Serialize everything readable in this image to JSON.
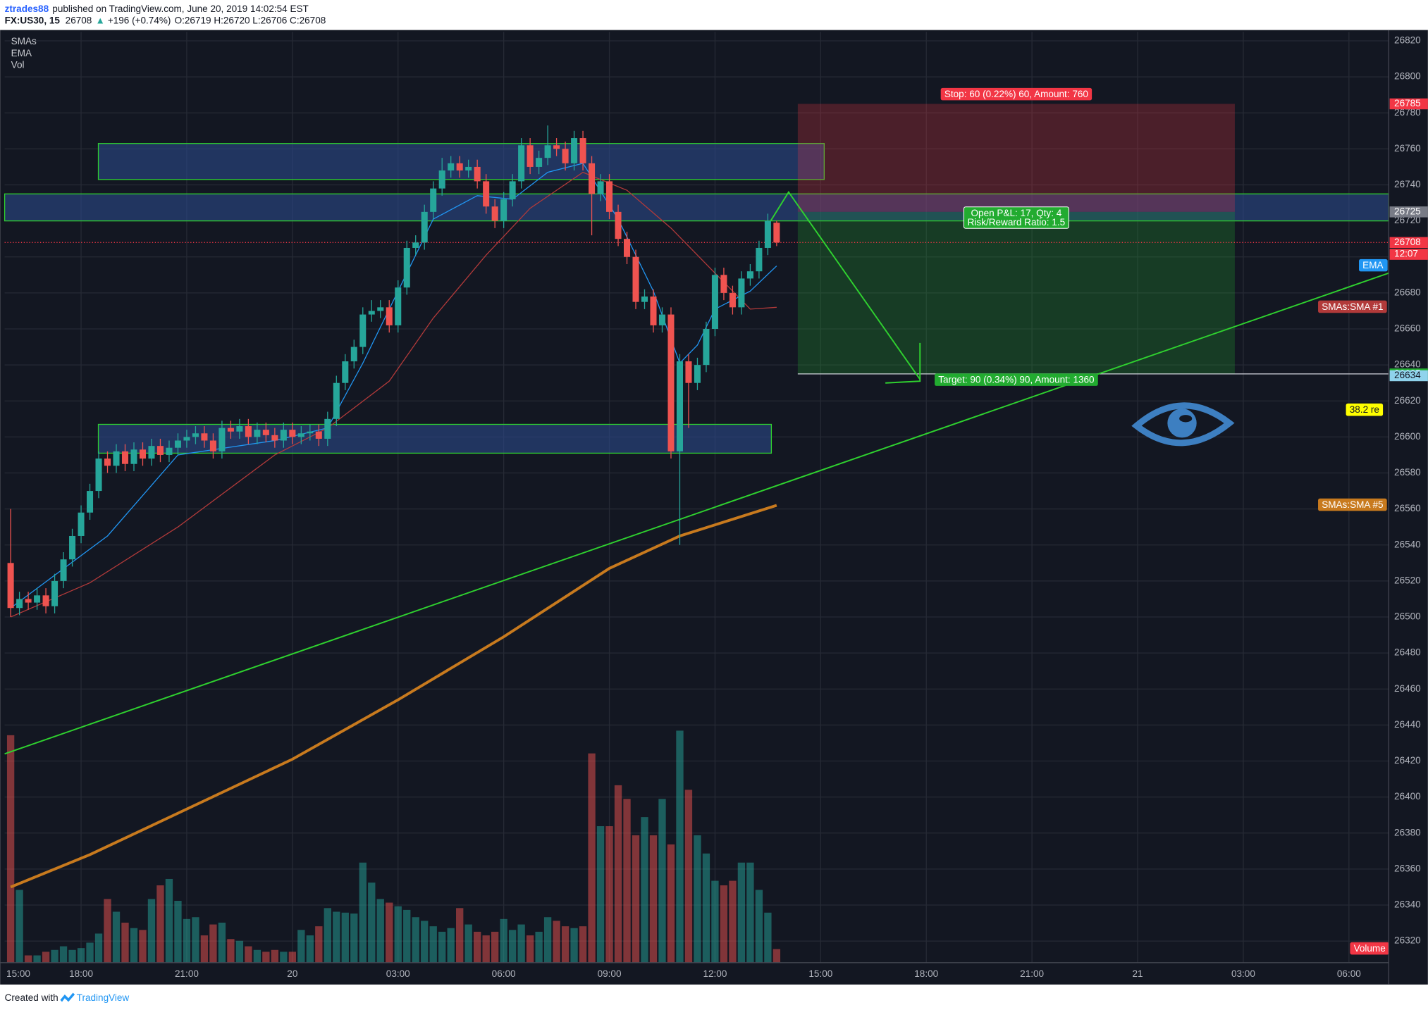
{
  "header": {
    "author": "ztrades88",
    "published": "published on TradingView.com, June 20, 2019 14:02:54 EST",
    "symbol": "FX:US30, 15",
    "quote": "26708",
    "arrow": "▲",
    "change": "+196 (+0.74%)",
    "ohlc": "O:26719 H:26720 L:26706 C:26708"
  },
  "footer": {
    "created": "Created with",
    "brand": "TradingView"
  },
  "chart_data": {
    "type": "candlestick",
    "legend": [
      "SMAs",
      "EMA",
      "Vol"
    ],
    "up_color": "#26a69a",
    "down_color": "#ef5350",
    "x": [
      16,
      16.25,
      16.5,
      16.75,
      17,
      17.25,
      17.5,
      17.75,
      18,
      18.25,
      18.5,
      18.75,
      19,
      19.25,
      19.5,
      19.75,
      20,
      20.25,
      20.5,
      20.75,
      21,
      21.25,
      21.5,
      21.75,
      22,
      22.25,
      22.5,
      22.75,
      23,
      23.25,
      23.5,
      23.75,
      24,
      24.25,
      24.5,
      24.75,
      25,
      25.25,
      25.5,
      25.75,
      26,
      26.25,
      26.5,
      26.75,
      27,
      27.25,
      27.5,
      27.75,
      28,
      28.25,
      28.5,
      28.75,
      29,
      29.25,
      29.5,
      29.75,
      30,
      30.25,
      30.5,
      30.75,
      31,
      31.25,
      31.5,
      31.75,
      32,
      32.25,
      32.5,
      32.75,
      33,
      33.25,
      33.5,
      33.75,
      34,
      34.25,
      34.5,
      34.75,
      35,
      35.25,
      35.5,
      35.75,
      36,
      36.25,
      36.5,
      36.75,
      37,
      37.25,
      37.5,
      37.75
    ],
    "open": [
      26530,
      26505,
      26510,
      26508,
      26512,
      26506,
      26520,
      26532,
      26545,
      26558,
      26570,
      26588,
      26584,
      26592,
      26585,
      26593,
      26588,
      26595,
      26590,
      26594,
      26598,
      26600,
      26602,
      26598,
      26592,
      26605,
      26603,
      26606,
      26600,
      26604,
      26601,
      26598,
      26604,
      26600,
      26602,
      26603,
      26599,
      26610,
      26630,
      26642,
      26650,
      26668,
      26670,
      26672,
      26662,
      26683,
      26705,
      26708,
      26725,
      26738,
      26748,
      26752,
      26748,
      26750,
      26742,
      26728,
      26720,
      26732,
      26742,
      26762,
      26750,
      26755,
      26762,
      26760,
      26752,
      26766,
      26752,
      26735,
      26742,
      26725,
      26710,
      26700,
      26675,
      26678,
      26662,
      26668,
      26592,
      26642,
      26630,
      26640,
      26660,
      26690,
      26680,
      26672,
      26688,
      26692,
      26705,
      26719
    ],
    "high": [
      26560,
      26514,
      26514,
      26516,
      26516,
      26524,
      26536,
      26549,
      26562,
      26574,
      26592,
      26592,
      26596,
      26596,
      26597,
      26597,
      26599,
      26599,
      26598,
      26602,
      26604,
      26606,
      26606,
      26602,
      26609,
      26609,
      26610,
      26610,
      26608,
      26608,
      26605,
      26608,
      26608,
      26606,
      26607,
      26607,
      26614,
      26634,
      26646,
      26654,
      26672,
      26676,
      26676,
      26676,
      26687,
      26709,
      26712,
      26729,
      26742,
      26755,
      26756,
      26756,
      26754,
      26754,
      26746,
      26732,
      26736,
      26746,
      26766,
      26766,
      26759,
      26773,
      26766,
      26764,
      26770,
      26770,
      26756,
      26746,
      26746,
      26729,
      26714,
      26704,
      26682,
      26682,
      26672,
      26672,
      26646,
      26646,
      26644,
      26664,
      26694,
      26694,
      26684,
      26692,
      26696,
      26709,
      26724,
      26720
    ],
    "low": [
      26500,
      26501,
      26504,
      26504,
      26502,
      26502,
      26516,
      26528,
      26541,
      26554,
      26566,
      26580,
      26580,
      26581,
      26581,
      26584,
      26584,
      26586,
      26586,
      26590,
      26594,
      26596,
      26594,
      26588,
      26588,
      26599,
      26599,
      26596,
      26596,
      26597,
      26594,
      26594,
      26596,
      26596,
      26598,
      26595,
      26595,
      26606,
      26626,
      26638,
      26646,
      26664,
      26666,
      26658,
      26658,
      26679,
      26701,
      26704,
      26721,
      26734,
      26744,
      26744,
      26744,
      26738,
      26724,
      26716,
      26716,
      26728,
      26738,
      26746,
      26746,
      26751,
      26756,
      26748,
      26748,
      26748,
      26712,
      26731,
      26721,
      26706,
      26696,
      26671,
      26671,
      26658,
      26658,
      26588,
      26540,
      26605,
      26626,
      26636,
      26656,
      26676,
      26668,
      26668,
      26684,
      26688,
      26701,
      26706
    ],
    "close": [
      26505,
      26510,
      26508,
      26512,
      26506,
      26520,
      26532,
      26545,
      26558,
      26570,
      26588,
      26584,
      26592,
      26585,
      26593,
      26588,
      26595,
      26590,
      26594,
      26598,
      26600,
      26602,
      26598,
      26592,
      26605,
      26603,
      26606,
      26600,
      26604,
      26601,
      26598,
      26604,
      26600,
      26602,
      26603,
      26599,
      26610,
      26630,
      26642,
      26650,
      26668,
      26670,
      26672,
      26662,
      26683,
      26705,
      26708,
      26725,
      26738,
      26748,
      26752,
      26748,
      26750,
      26742,
      26728,
      26720,
      26732,
      26742,
      26762,
      26750,
      26755,
      26762,
      26760,
      26752,
      26766,
      26752,
      26735,
      26742,
      26725,
      26710,
      26700,
      26675,
      26678,
      26662,
      26668,
      26592,
      26642,
      26630,
      26640,
      26660,
      26690,
      26680,
      26672,
      26688,
      26692,
      26705,
      26720,
      26708
    ],
    "volume": [
      250,
      80,
      8,
      8,
      12,
      14,
      18,
      14,
      16,
      22,
      32,
      70,
      56,
      44,
      38,
      36,
      70,
      85,
      92,
      68,
      48,
      50,
      30,
      42,
      44,
      26,
      24,
      18,
      14,
      12,
      14,
      12,
      12,
      36,
      30,
      40,
      60,
      56,
      55,
      54,
      110,
      88,
      70,
      66,
      62,
      58,
      50,
      46,
      40,
      34,
      38,
      60,
      42,
      34,
      30,
      34,
      48,
      36,
      42,
      30,
      34,
      50,
      46,
      40,
      38,
      40,
      230,
      150,
      150,
      195,
      180,
      140,
      160,
      140,
      180,
      130,
      255,
      190,
      140,
      120,
      90,
      85,
      90,
      110,
      110,
      80,
      55,
      15
    ],
    "volume_label": "Volume",
    "xlim": [
      15.83,
      55.13
    ],
    "xticks": [
      {
        "value": 15,
        "label": "15:00"
      },
      {
        "value": 18,
        "label": "18:00"
      },
      {
        "value": 21,
        "label": "21:00"
      },
      {
        "value": 24,
        "label": "20"
      },
      {
        "value": 27,
        "label": "03:00"
      },
      {
        "value": 30,
        "label": "06:00"
      },
      {
        "value": 33,
        "label": "09:00"
      },
      {
        "value": 36,
        "label": "12:00"
      },
      {
        "value": 39,
        "label": "15:00"
      },
      {
        "value": 42,
        "label": "18:00"
      },
      {
        "value": 45,
        "label": "21:00"
      },
      {
        "value": 48,
        "label": "21"
      },
      {
        "value": 51,
        "label": "03:00"
      },
      {
        "value": 54,
        "label": "06:00"
      }
    ],
    "ylim": [
      26308,
      26825
    ],
    "yticks": [
      26320,
      26340,
      26360,
      26380,
      26400,
      26420,
      26440,
      26460,
      26480,
      26500,
      26520,
      26540,
      26560,
      26580,
      26600,
      26620,
      26640,
      26660,
      26680,
      26700,
      26720,
      26740,
      26760,
      26780,
      26800,
      26820
    ],
    "grid": true,
    "lines": [
      {
        "name": "EMA",
        "color": "#2196f3",
        "width": 1,
        "x": [
          16,
          18.75,
          20.75,
          23.5,
          25,
          26,
          27.25,
          28,
          29.25,
          30.25,
          31.25,
          32.25,
          33.25,
          34.25,
          35,
          35.5,
          36,
          37,
          37.75
        ],
        "values": [
          26505,
          26545,
          26590,
          26598,
          26605,
          26641,
          26691,
          26721,
          26734,
          26732,
          26747,
          26752,
          26721,
          26681,
          26641,
          26651,
          26671,
          26681,
          26695
        ]
      },
      {
        "name": "SMAs:SMA #1",
        "color": "#b23a3a",
        "width": 1,
        "x": [
          16,
          18.25,
          20.75,
          23.5,
          25,
          26.75,
          28,
          29.5,
          30.75,
          32.25,
          33.5,
          34.75,
          36,
          37,
          37.75
        ],
        "values": [
          26500,
          26519,
          26550,
          26590,
          26605,
          26631,
          26666,
          26701,
          26727,
          26747,
          26737,
          26716,
          26691,
          26671,
          26672
        ]
      },
      {
        "name": "SMAs:SMA #5",
        "color": "#c87a1e",
        "width": 3,
        "x": [
          16,
          18.25,
          20.75,
          24,
          27,
          30,
          33,
          35,
          37.75
        ],
        "values": [
          26350,
          26368,
          26391,
          26421,
          26454,
          26489,
          26527,
          26545,
          26562
        ]
      }
    ],
    "trendline": {
      "color": "#2fd12f",
      "x": [
        15.83,
        55.13
      ],
      "values": [
        26424,
        26691
      ]
    },
    "zones": [
      {
        "top": 26763,
        "bottom": 26743,
        "start": 18.49,
        "end": 39.1
      },
      {
        "top": 26735,
        "bottom": 26720,
        "start": 15.83,
        "end": 55.13
      },
      {
        "top": 26607,
        "bottom": 26591,
        "start": 18.49,
        "end": 37.6
      }
    ],
    "position": {
      "entry": 26725,
      "stop": 26785,
      "target": 26635,
      "start": 38.35,
      "end": 50.76,
      "stop_label": "Stop: 60 (0.22%) 60, Amount: 760",
      "pnl_label": "Open P&L: 17, Qty: 4",
      "rr_label": "Risk/Reward Ratio: 1.5",
      "target_label": "Target: 90 (0.34%) 90, Amount: 1360"
    },
    "projection": {
      "color": "#2fd12f",
      "x": [
        37.58,
        38.09,
        41.82
      ],
      "values": [
        26720,
        26736,
        26632
      ]
    },
    "last_price": 26708,
    "countdown": "12:07",
    "price_labels": [
      {
        "value": 26785,
        "color": "#f23645"
      },
      {
        "value": 26725,
        "color": "#787b86"
      },
      {
        "value": 26708,
        "color": "#f23645"
      },
      {
        "value": 26635,
        "color": "#22ab30"
      },
      {
        "value": 26634,
        "color": "#8fd3ec"
      }
    ],
    "fib_label": "38.2 re"
  }
}
